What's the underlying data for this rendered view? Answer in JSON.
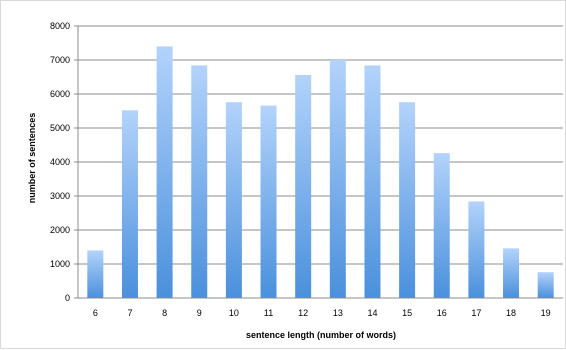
{
  "chart_data": {
    "type": "bar",
    "title": "",
    "xlabel": "sentence length (number of words)",
    "ylabel": "number of sentences",
    "categories": [
      "6",
      "7",
      "8",
      "9",
      "10",
      "11",
      "12",
      "13",
      "14",
      "15",
      "16",
      "17",
      "18",
      "19"
    ],
    "values": [
      1400,
      5520,
      7400,
      6840,
      5760,
      5660,
      6560,
      7000,
      6840,
      5760,
      4260,
      2840,
      1460,
      760
    ],
    "ylim": [
      0,
      8000
    ],
    "yticks": [
      0,
      1000,
      2000,
      3000,
      4000,
      5000,
      6000,
      7000,
      8000
    ],
    "grid": true,
    "legend": "none",
    "colors": {
      "bar_top": "#b3d3fb",
      "bar_bottom": "#4a90dc",
      "grid": "#8c8c8c",
      "axis": "#8c8c8c",
      "frame": "#d9d9d9"
    }
  }
}
